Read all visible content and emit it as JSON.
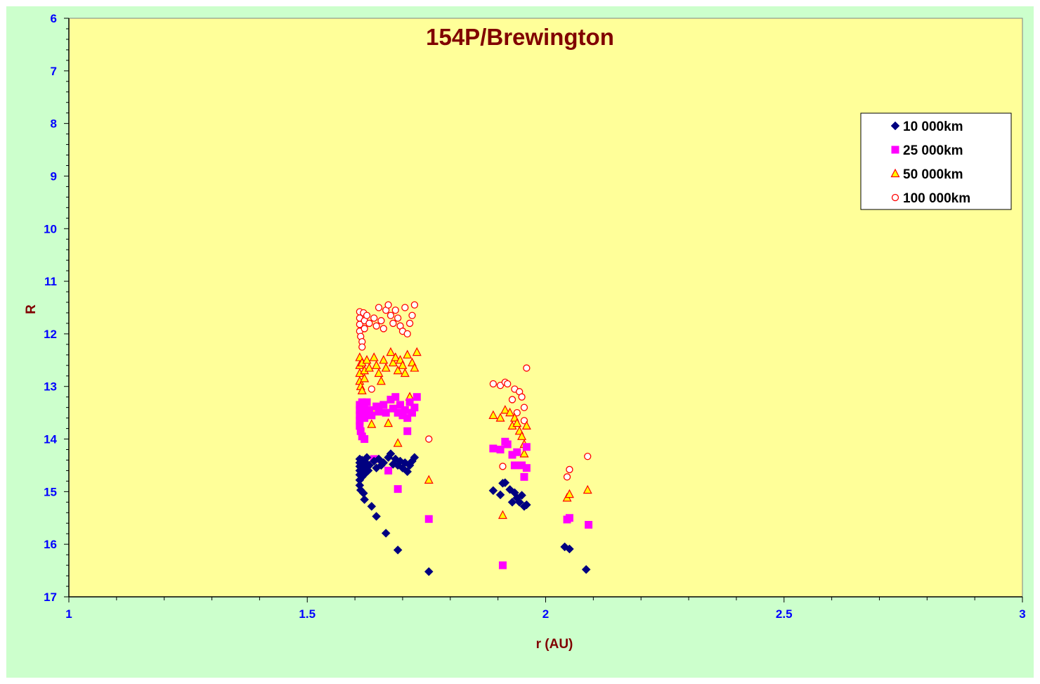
{
  "chart_data": {
    "type": "scatter",
    "title": "154P/Brewington",
    "xlabel": "r (AU)",
    "ylabel": "R",
    "xlim": [
      1,
      3
    ],
    "ylim": [
      6,
      17
    ],
    "y_inverted": true,
    "x_ticks": [
      "1",
      "1.5",
      "2",
      "2.5",
      "3"
    ],
    "y_ticks": [
      "6",
      "7",
      "8",
      "9",
      "10",
      "11",
      "12",
      "13",
      "14",
      "15",
      "16",
      "17"
    ],
    "grid": false,
    "legend_position": "top-right",
    "colors": {
      "outer_background": "#ccffcc",
      "plot_background": "#ffff99",
      "title": "#800000",
      "axis_label": "#800000",
      "tick_label": "#0000ff"
    },
    "series": [
      {
        "name": "10 000km",
        "marker": "diamond",
        "color": "#000080",
        "points": [
          [
            1.61,
            14.38
          ],
          [
            1.61,
            14.45
          ],
          [
            1.61,
            14.52
          ],
          [
            1.61,
            14.6
          ],
          [
            1.61,
            14.68
          ],
          [
            1.61,
            14.78
          ],
          [
            1.61,
            14.88
          ],
          [
            1.612,
            14.97
          ],
          [
            1.615,
            14.4
          ],
          [
            1.615,
            14.5
          ],
          [
            1.615,
            14.62
          ],
          [
            1.615,
            14.72
          ],
          [
            1.618,
            15.03
          ],
          [
            1.62,
            14.42
          ],
          [
            1.62,
            14.55
          ],
          [
            1.62,
            14.67
          ],
          [
            1.62,
            15.15
          ],
          [
            1.625,
            14.35
          ],
          [
            1.625,
            14.48
          ],
          [
            1.628,
            14.6
          ],
          [
            1.63,
            14.5
          ],
          [
            1.635,
            15.28
          ],
          [
            1.64,
            14.42
          ],
          [
            1.645,
            14.55
          ],
          [
            1.645,
            15.47
          ],
          [
            1.65,
            14.38
          ],
          [
            1.655,
            14.5
          ],
          [
            1.66,
            14.45
          ],
          [
            1.665,
            15.79
          ],
          [
            1.67,
            14.35
          ],
          [
            1.675,
            14.28
          ],
          [
            1.68,
            14.48
          ],
          [
            1.685,
            14.38
          ],
          [
            1.69,
            14.5
          ],
          [
            1.69,
            16.11
          ],
          [
            1.695,
            14.42
          ],
          [
            1.7,
            14.55
          ],
          [
            1.705,
            14.45
          ],
          [
            1.71,
            14.62
          ],
          [
            1.715,
            14.5
          ],
          [
            1.72,
            14.42
          ],
          [
            1.725,
            14.35
          ],
          [
            1.755,
            16.52
          ],
          [
            1.89,
            14.98
          ],
          [
            1.905,
            15.06
          ],
          [
            1.91,
            14.84
          ],
          [
            1.915,
            14.83
          ],
          [
            1.925,
            14.96
          ],
          [
            1.93,
            15.2
          ],
          [
            1.935,
            15.02
          ],
          [
            1.94,
            15.12
          ],
          [
            1.945,
            15.2
          ],
          [
            1.95,
            15.07
          ],
          [
            1.955,
            15.28
          ],
          [
            1.96,
            15.25
          ],
          [
            2.04,
            16.05
          ],
          [
            2.05,
            16.09
          ],
          [
            2.085,
            16.48
          ]
        ]
      },
      {
        "name": "25 000km",
        "marker": "square",
        "color": "#ff00ff",
        "points": [
          [
            1.61,
            13.35
          ],
          [
            1.61,
            13.45
          ],
          [
            1.61,
            13.55
          ],
          [
            1.61,
            13.65
          ],
          [
            1.61,
            13.75
          ],
          [
            1.612,
            13.85
          ],
          [
            1.615,
            13.95
          ],
          [
            1.615,
            13.3
          ],
          [
            1.62,
            13.4
          ],
          [
            1.62,
            13.5
          ],
          [
            1.62,
            13.6
          ],
          [
            1.62,
            14.0
          ],
          [
            1.625,
            13.3
          ],
          [
            1.63,
            13.45
          ],
          [
            1.635,
            13.55
          ],
          [
            1.64,
            14.38
          ],
          [
            1.645,
            13.38
          ],
          [
            1.65,
            13.48
          ],
          [
            1.66,
            13.35
          ],
          [
            1.665,
            13.5
          ],
          [
            1.67,
            14.6
          ],
          [
            1.675,
            13.25
          ],
          [
            1.68,
            13.42
          ],
          [
            1.685,
            13.2
          ],
          [
            1.69,
            13.5
          ],
          [
            1.69,
            14.95
          ],
          [
            1.695,
            13.35
          ],
          [
            1.7,
            13.55
          ],
          [
            1.705,
            13.45
          ],
          [
            1.71,
            13.6
          ],
          [
            1.71,
            13.85
          ],
          [
            1.715,
            13.3
          ],
          [
            1.72,
            13.5
          ],
          [
            1.725,
            13.4
          ],
          [
            1.73,
            13.2
          ],
          [
            1.755,
            15.52
          ],
          [
            1.89,
            14.18
          ],
          [
            1.905,
            14.2
          ],
          [
            1.91,
            16.4
          ],
          [
            1.915,
            14.05
          ],
          [
            1.92,
            14.1
          ],
          [
            1.93,
            14.3
          ],
          [
            1.935,
            14.5
          ],
          [
            1.94,
            14.25
          ],
          [
            1.95,
            14.5
          ],
          [
            1.955,
            14.72
          ],
          [
            1.96,
            14.55
          ],
          [
            1.96,
            14.15
          ],
          [
            2.045,
            15.53
          ],
          [
            2.05,
            15.5
          ],
          [
            2.09,
            15.63
          ]
        ]
      },
      {
        "name": "50 000km",
        "marker": "triangle",
        "color": "#ff9900",
        "points": [
          [
            1.61,
            12.45
          ],
          [
            1.61,
            12.6
          ],
          [
            1.61,
            12.75
          ],
          [
            1.61,
            12.9
          ],
          [
            1.612,
            13.0
          ],
          [
            1.615,
            13.08
          ],
          [
            1.615,
            12.55
          ],
          [
            1.62,
            12.7
          ],
          [
            1.62,
            12.85
          ],
          [
            1.625,
            12.5
          ],
          [
            1.63,
            12.65
          ],
          [
            1.635,
            13.72
          ],
          [
            1.64,
            12.45
          ],
          [
            1.64,
            13.48
          ],
          [
            1.645,
            12.6
          ],
          [
            1.65,
            12.75
          ],
          [
            1.655,
            12.9
          ],
          [
            1.66,
            12.5
          ],
          [
            1.665,
            12.65
          ],
          [
            1.67,
            13.7
          ],
          [
            1.675,
            12.35
          ],
          [
            1.68,
            12.55
          ],
          [
            1.685,
            12.45
          ],
          [
            1.69,
            12.7
          ],
          [
            1.69,
            14.08
          ],
          [
            1.695,
            12.5
          ],
          [
            1.7,
            12.6
          ],
          [
            1.705,
            12.75
          ],
          [
            1.71,
            12.4
          ],
          [
            1.715,
            13.2
          ],
          [
            1.72,
            12.55
          ],
          [
            1.725,
            12.65
          ],
          [
            1.73,
            12.35
          ],
          [
            1.755,
            14.78
          ],
          [
            1.89,
            13.55
          ],
          [
            1.905,
            13.6
          ],
          [
            1.91,
            15.45
          ],
          [
            1.915,
            13.45
          ],
          [
            1.925,
            13.5
          ],
          [
            1.93,
            13.75
          ],
          [
            1.935,
            13.6
          ],
          [
            1.94,
            13.7
          ],
          [
            1.945,
            13.85
          ],
          [
            1.95,
            13.95
          ],
          [
            1.955,
            14.1
          ],
          [
            1.955,
            14.28
          ],
          [
            1.96,
            13.75
          ],
          [
            2.045,
            15.12
          ],
          [
            2.05,
            15.05
          ],
          [
            2.088,
            14.97
          ]
        ]
      },
      {
        "name": "100 000km",
        "marker": "circle",
        "color": "#ff0000",
        "points": [
          [
            1.61,
            11.58
          ],
          [
            1.61,
            11.7
          ],
          [
            1.61,
            11.82
          ],
          [
            1.61,
            11.95
          ],
          [
            1.612,
            12.05
          ],
          [
            1.615,
            12.15
          ],
          [
            1.615,
            12.25
          ],
          [
            1.618,
            11.6
          ],
          [
            1.62,
            11.75
          ],
          [
            1.62,
            11.9
          ],
          [
            1.625,
            11.65
          ],
          [
            1.63,
            11.8
          ],
          [
            1.635,
            13.05
          ],
          [
            1.64,
            11.7
          ],
          [
            1.645,
            11.85
          ],
          [
            1.65,
            11.5
          ],
          [
            1.655,
            11.75
          ],
          [
            1.66,
            11.9
          ],
          [
            1.665,
            11.55
          ],
          [
            1.67,
            11.45
          ],
          [
            1.675,
            11.65
          ],
          [
            1.68,
            11.8
          ],
          [
            1.685,
            11.55
          ],
          [
            1.69,
            11.7
          ],
          [
            1.695,
            11.85
          ],
          [
            1.7,
            11.95
          ],
          [
            1.705,
            11.5
          ],
          [
            1.71,
            12.0
          ],
          [
            1.715,
            11.8
          ],
          [
            1.72,
            11.65
          ],
          [
            1.725,
            11.45
          ],
          [
            1.755,
            14.0
          ],
          [
            1.89,
            12.95
          ],
          [
            1.905,
            12.98
          ],
          [
            1.91,
            14.52
          ],
          [
            1.915,
            12.92
          ],
          [
            1.92,
            12.95
          ],
          [
            1.93,
            13.25
          ],
          [
            1.935,
            13.05
          ],
          [
            1.94,
            13.5
          ],
          [
            1.945,
            13.1
          ],
          [
            1.95,
            13.2
          ],
          [
            1.955,
            13.4
          ],
          [
            1.955,
            13.65
          ],
          [
            1.96,
            12.65
          ],
          [
            2.045,
            14.72
          ],
          [
            2.05,
            14.58
          ],
          [
            2.088,
            14.33
          ]
        ]
      }
    ]
  }
}
